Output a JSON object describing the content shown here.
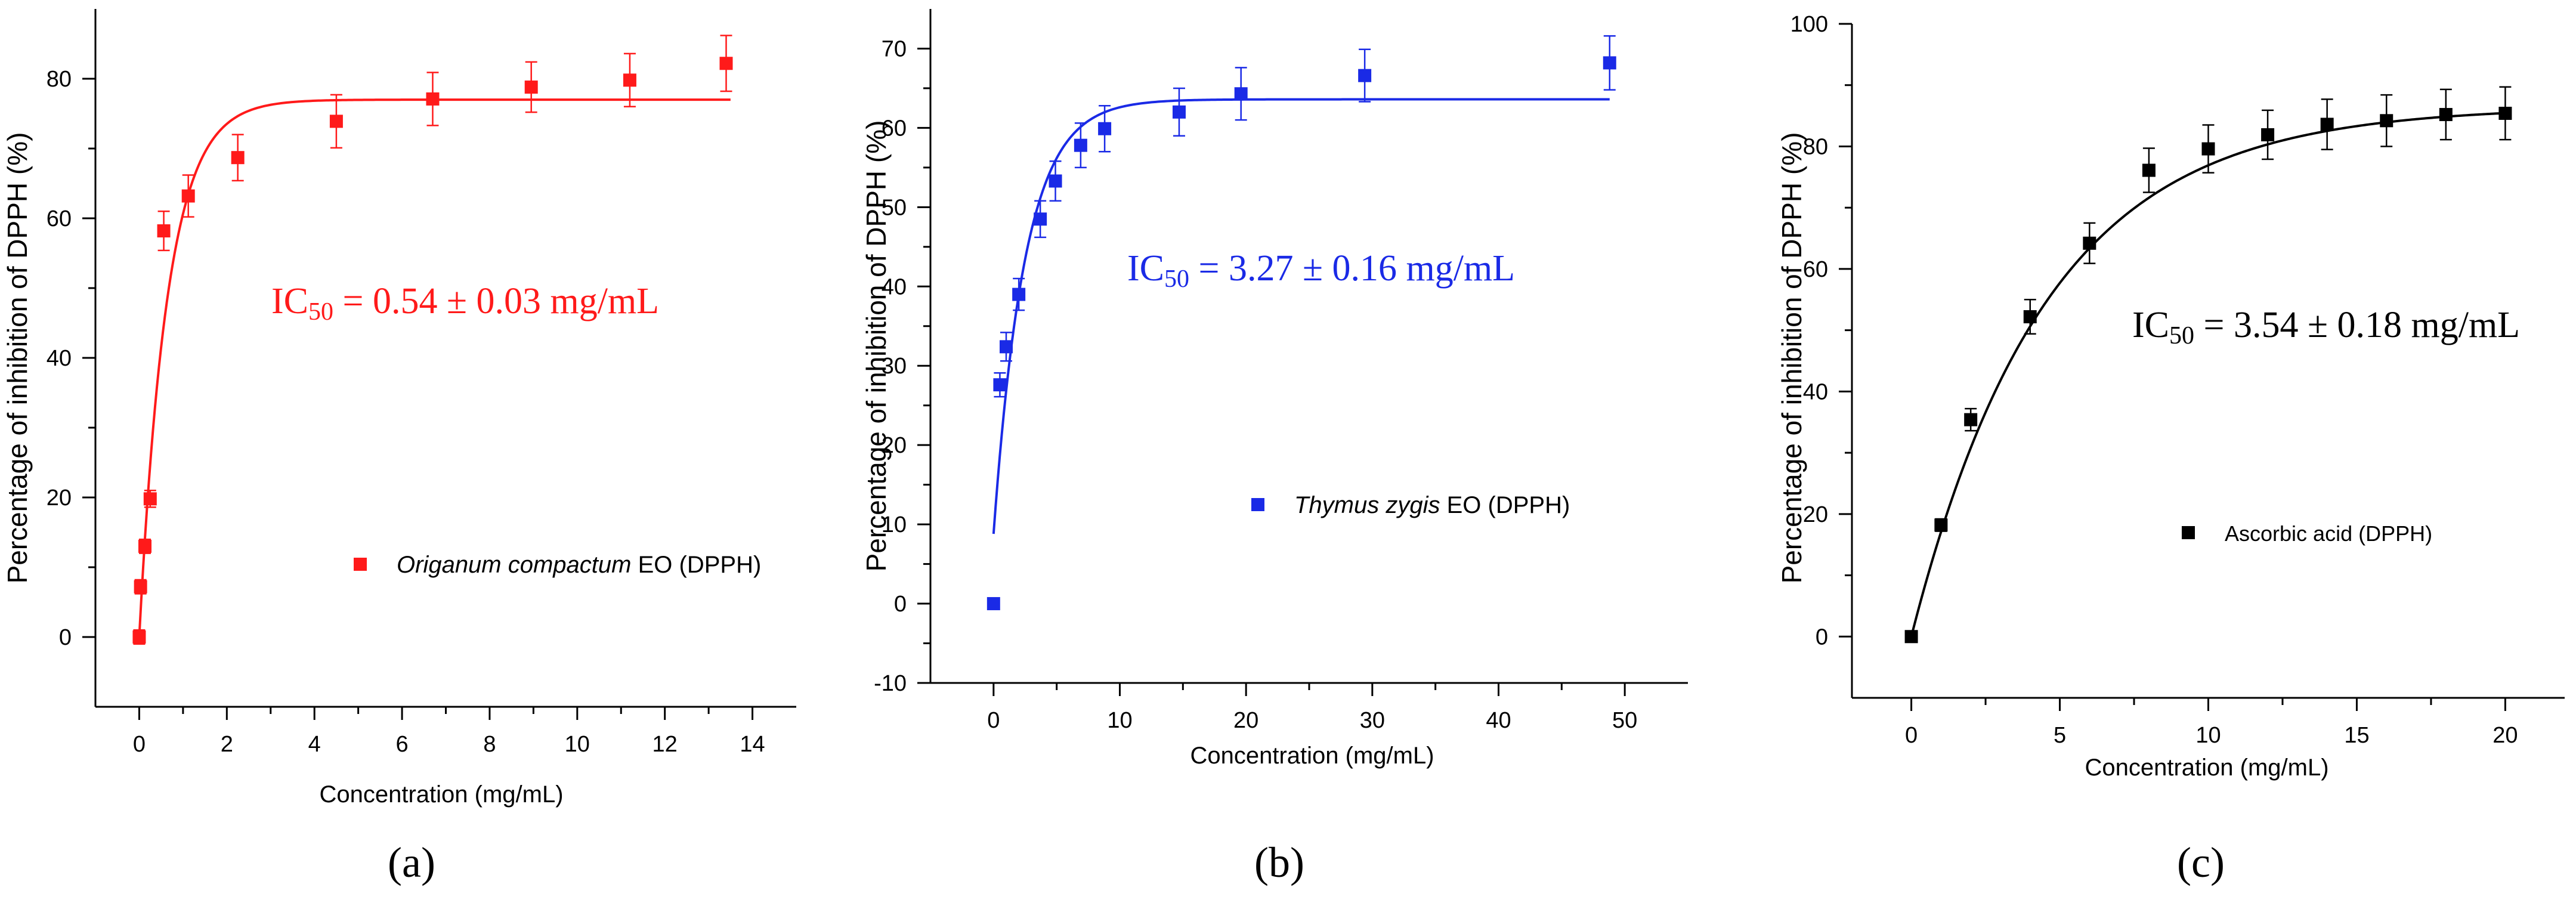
{
  "figure": {
    "panels": [
      "(a)",
      "(b)",
      "(c)"
    ]
  },
  "chart_data": [
    {
      "type": "scatter",
      "panel_label": "(a)",
      "color": "#ff1a1a",
      "xlabel": "Concentration (mg/mL)",
      "ylabel": "Percentage of inhibition of DPPH  (%)",
      "xlim": [
        -1,
        15
      ],
      "ylim": [
        -10,
        90
      ],
      "xticks": [
        0,
        2,
        4,
        6,
        8,
        10,
        12,
        14
      ],
      "yticks": [
        0,
        20,
        40,
        60,
        80
      ],
      "legend": {
        "italic": "Origanum compactum",
        "normal": " EO (DPPH)",
        "location": "center-right"
      },
      "annotation": {
        "prefix": "IC",
        "subscript": "50",
        "value": " = 0.54 ± 0.03 mg/mL"
      },
      "series": [
        {
          "name": "Origanum compactum EO (DPPH)",
          "x": [
            0,
            0.03,
            0.13,
            0.25,
            0.56,
            1.12,
            2.25,
            4.5,
            6.7,
            8.95,
            11.2,
            13.4
          ],
          "y": [
            0,
            7.2,
            13,
            19.8,
            58.2,
            63.2,
            68.7,
            73.9,
            77.1,
            78.8,
            79.8,
            82.2
          ],
          "err": [
            1,
            1,
            1,
            1.2,
            2.8,
            3,
            3.3,
            3.8,
            3.8,
            3.6,
            3.8,
            4
          ]
        }
      ],
      "fit": {
        "model": "exponential",
        "ymax": 77,
        "k": 1.55,
        "x_range": [
          0,
          13.5
        ]
      }
    },
    {
      "type": "scatter",
      "panel_label": "(b)",
      "color": "#1a2ae6",
      "xlabel": "Concentration (mg/mL)",
      "ylabel": "Percentage of inhibition of DPPH (%)",
      "xlim": [
        -5,
        55
      ],
      "ylim": [
        -10,
        75
      ],
      "xticks": [
        0,
        10,
        20,
        30,
        40,
        50
      ],
      "yticks": [
        -10,
        0,
        10,
        20,
        30,
        40,
        50,
        60,
        70
      ],
      "legend": {
        "italic": "Thymus zygis",
        "normal": " EO (DPPH)",
        "location": "center-right"
      },
      "annotation": {
        "prefix": "IC",
        "subscript": "50",
        "value": " = 3.27 ± 0.16 mg/mL"
      },
      "series": [
        {
          "name": "Thymus zygis EO (DPPH)",
          "x": [
            0,
            0.5,
            1,
            2,
            3.7,
            4.9,
            6.9,
            8.8,
            14.7,
            19.6,
            29.4,
            48.8
          ],
          "y": [
            0,
            27.6,
            32.4,
            39,
            48.5,
            53.3,
            57.8,
            59.9,
            62,
            64.3,
            66.6,
            68.2
          ],
          "err": [
            0.5,
            1.5,
            1.8,
            2,
            2.3,
            2.5,
            2.8,
            2.9,
            3,
            3.3,
            3.3,
            3.4
          ]
        }
      ],
      "fit": {
        "model": "exponential",
        "ymax": 63.6,
        "y0": 8.8,
        "k": 0.4,
        "x_range": [
          0,
          48.8
        ]
      }
    },
    {
      "type": "scatter",
      "panel_label": "(c)",
      "color": "#000000",
      "xlabel": "Concentration (mg/mL)",
      "ylabel": "Percentage of inhibition of DPPH (%)",
      "xlim": [
        -2,
        22
      ],
      "ylim": [
        -10,
        100
      ],
      "xticks": [
        0,
        5,
        10,
        15,
        20
      ],
      "yticks": [
        0,
        20,
        40,
        60,
        80,
        100
      ],
      "legend": {
        "italic": "",
        "normal": "Ascorbic acid (DPPH)",
        "location": "center-right"
      },
      "annotation": {
        "prefix": "IC",
        "subscript": "50",
        "value": " = 3.54 ± 0.18 mg/mL"
      },
      "series": [
        {
          "name": "Ascorbic acid (DPPH)",
          "x": [
            0,
            1,
            2,
            4,
            6,
            8,
            10,
            12,
            14,
            16,
            18,
            20
          ],
          "y": [
            0,
            18.2,
            35.4,
            52.2,
            64.2,
            76.1,
            79.6,
            81.9,
            83.6,
            84.2,
            85.2,
            85.4
          ],
          "err": [
            0.5,
            1,
            1.8,
            2.8,
            3.3,
            3.6,
            3.9,
            4,
            4.1,
            4.2,
            4.1,
            4.3
          ]
        }
      ],
      "fit": {
        "model": "exponential",
        "ymax": 86.5,
        "k": 0.22,
        "x_range": [
          0,
          20
        ]
      }
    }
  ]
}
